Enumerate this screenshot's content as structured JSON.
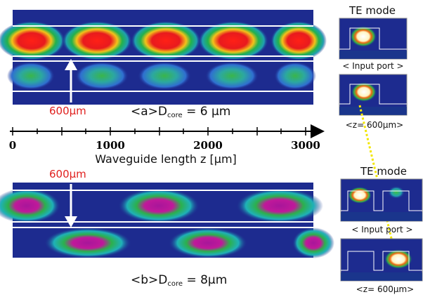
{
  "panel_a": {
    "label_prefix": "<a>D",
    "label_sub": "core",
    "label_value": " = 6 μm",
    "marker_label": "600μm"
  },
  "panel_b": {
    "label_prefix": "<b>D",
    "label_sub": "core",
    "label_value": " = 8μm",
    "marker_label": "600μm"
  },
  "axis": {
    "title": "Waveguide length z [μm]",
    "ticks": [
      "0",
      "1000",
      "2000",
      "3000"
    ]
  },
  "side_a": {
    "title": "TE mode",
    "input_label": "< Input port >",
    "output_label": "<z= 600μm>"
  },
  "side_b": {
    "title": "TE mode",
    "input_label": "< Input port >",
    "output_label": "<z= 600μm>"
  },
  "colors": {
    "field_background": "#1d2b8f",
    "mid_field": "#22b14c",
    "peak_a": "#e8191e",
    "peak_b": "#c0189a",
    "marker_label": "#e0201e",
    "yellow_arrow": "#f2e600",
    "guide_line": "#ffffff"
  }
}
